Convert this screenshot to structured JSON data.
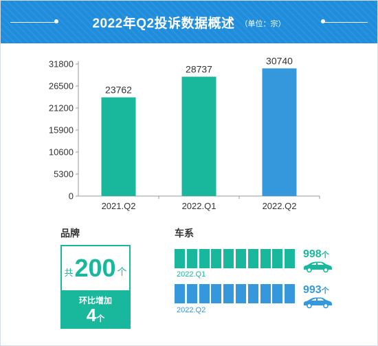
{
  "header": {
    "title": "2022年Q2投诉数据概述",
    "unit": "（单位：宗）"
  },
  "chart_data": {
    "type": "bar",
    "title": "2022年Q2投诉数据概述",
    "categories": [
      "2021.Q2",
      "2022.Q1",
      "2022.Q2"
    ],
    "values": [
      23762,
      28737,
      30740
    ],
    "ylim": [
      0,
      31800
    ],
    "yticks": [
      0,
      5300,
      10600,
      15900,
      21200,
      26500,
      31800
    ],
    "bar_colors": [
      "#19b79c",
      "#19b79c",
      "#3598dc"
    ],
    "grid": false
  },
  "brand": {
    "title": "品牌",
    "prefix": "共",
    "count": "200",
    "suffix": "个",
    "increase_label": "环比增加",
    "increase_value": "4",
    "increase_suffix": "个"
  },
  "series_section": {
    "title": "车系",
    "rows": [
      {
        "period": "2022.Q1",
        "value": "998",
        "suffix": "个",
        "color": "#19b79c",
        "segments": 10
      },
      {
        "period": "2022.Q2",
        "value": "993",
        "suffix": "个",
        "color": "#3598dc",
        "segments": 10
      }
    ]
  }
}
